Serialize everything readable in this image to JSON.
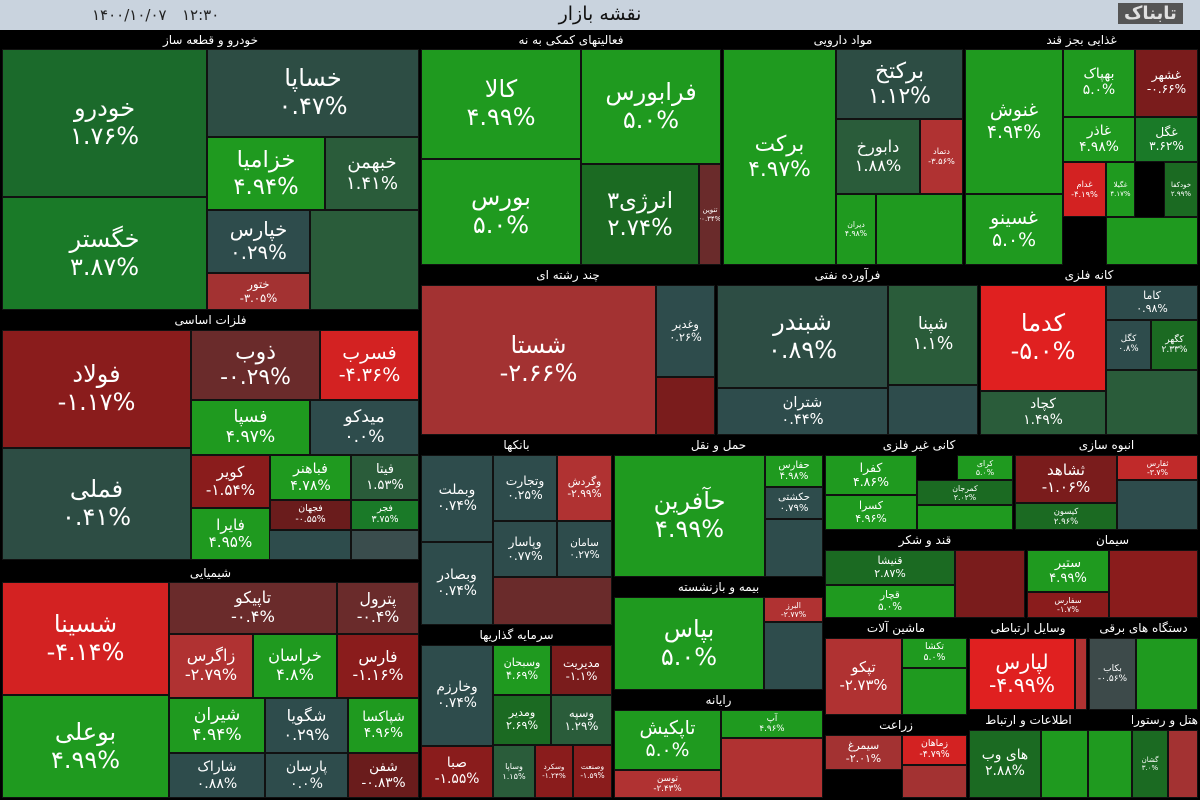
{
  "header": {
    "title": "نقشه بازار",
    "date": "۱۴۰۰/۱۰/۰۷",
    "time": "۱۲:۳۰",
    "logo": "تابناک"
  },
  "sectors": [
    {
      "name": "خودرو و قطعه ساز",
      "tiles": [
        {
          "name": "خودرو",
          "change": "۱.۷۶%",
          "color": "#1b6a2b"
        },
        {
          "name": "خگستر",
          "change": "۳.۸۷%",
          "color": "#1a7a28"
        },
        {
          "name": "خساپا",
          "change": "۰.۴۷%",
          "color": "#2d4d44"
        },
        {
          "name": "خزامیا",
          "change": "۴.۹۴%",
          "color": "#1f9a1f"
        },
        {
          "name": "خبهمن",
          "change": "۱.۴۱%",
          "color": "#2a5c3a"
        },
        {
          "name": "خپارس",
          "change": "۰.۲۹%",
          "color": "#2e4c4c"
        },
        {
          "name": "ختور",
          "change": "-۳.۰۵%",
          "color": "#a33232"
        }
      ]
    },
    {
      "name": "فلزات اساسی",
      "tiles": [
        {
          "name": "فولاد",
          "change": "-۱.۱۷%",
          "color": "#8a1c1c"
        },
        {
          "name": "فملی",
          "change": "۰.۴۱%",
          "color": "#2d4d44"
        },
        {
          "name": "ذوب",
          "change": "-۰.۲۹%",
          "color": "#6a2b2b"
        },
        {
          "name": "فسرب",
          "change": "-۴.۳۶%",
          "color": "#d32222"
        },
        {
          "name": "فسپا",
          "change": "۴.۹۷%",
          "color": "#1f9a1f"
        },
        {
          "name": "میدکو",
          "change": "۰.۰%",
          "color": "#2e4c4c"
        },
        {
          "name": "کویر",
          "change": "-۱.۵۴%",
          "color": "#8a1c1c"
        },
        {
          "name": "فباهنر",
          "change": "۴.۷۸%",
          "color": "#1f9a1f"
        },
        {
          "name": "فیتا",
          "change": "۱.۵۳%",
          "color": "#2a5c3a"
        },
        {
          "name": "فجهان",
          "change": "-۰.۵۵%",
          "color": "#6a1c1c"
        },
        {
          "name": "فجر",
          "change": "۳.۷۵%",
          "color": "#1a7a28"
        },
        {
          "name": "فایرا",
          "change": "۴.۹۵%",
          "color": "#1f9a1f"
        }
      ]
    },
    {
      "name": "شیمیایی",
      "tiles": [
        {
          "name": "شسینا",
          "change": "-۴.۱۴%",
          "color": "#d32222"
        },
        {
          "name": "بوعلی",
          "change": "۴.۹۹%",
          "color": "#1f9a1f"
        },
        {
          "name": "تاپیکو",
          "change": "-۰.۴%",
          "color": "#6a2b2b"
        },
        {
          "name": "پترول",
          "change": "-۰.۴%",
          "color": "#6a2b2b"
        },
        {
          "name": "زاگرس",
          "change": "-۲.۷۹%",
          "color": "#b03232"
        },
        {
          "name": "خراسان",
          "change": "۴.۸%",
          "color": "#1f9a1f"
        },
        {
          "name": "فارس",
          "change": "-۱.۱۶%",
          "color": "#8a1c1c"
        },
        {
          "name": "شیران",
          "change": "۴.۹۴%",
          "color": "#1f9a1f"
        },
        {
          "name": "شگویا",
          "change": "۰.۲۹%",
          "color": "#2e4c4c"
        },
        {
          "name": "شپاکسا",
          "change": "۴.۹۶%",
          "color": "#1f9a1f"
        },
        {
          "name": "شاراک",
          "change": "۰.۸۸%",
          "color": "#2e4c4c"
        },
        {
          "name": "پارسان",
          "change": "۰.۰%",
          "color": "#2e4c4c"
        },
        {
          "name": "شفن",
          "change": "-۰.۸۳%",
          "color": "#6a1c1c"
        }
      ]
    },
    {
      "name": "فعالیتهای کمکی به نه",
      "tiles": [
        {
          "name": "کالا",
          "change": "۴.۹۹%",
          "color": "#1f9a1f"
        },
        {
          "name": "فرابورس",
          "change": "۵.۰%",
          "color": "#1f9a1f"
        },
        {
          "name": "بورس",
          "change": "۵.۰%",
          "color": "#1f9a1f"
        },
        {
          "name": "انرژی۳",
          "change": "۲.۷۴%",
          "color": "#1b6a22"
        },
        {
          "name": "تنوین",
          "change": "-۰.۳۴%",
          "color": "#6a2b2b"
        }
      ]
    },
    {
      "name": "مواد دارویی",
      "tiles": [
        {
          "name": "برکت",
          "change": "۴.۹۷%",
          "color": "#1f9a1f"
        },
        {
          "name": "برکتخ",
          "change": "۱.۱۲%",
          "color": "#2d4d44"
        },
        {
          "name": "دابورخ",
          "change": "۱.۸۸%",
          "color": "#2a5c3a"
        },
        {
          "name": "دتماد",
          "change": "-۳.۵۶%",
          "color": "#b03232"
        },
        {
          "name": "دیران",
          "change": "۴.۹۸%",
          "color": "#1f9a1f"
        }
      ]
    },
    {
      "name": "غذایی بجز قند",
      "tiles": [
        {
          "name": "غنوش",
          "change": "۴.۹۴%",
          "color": "#1f9a1f"
        },
        {
          "name": "غسینو",
          "change": "۵.۰%",
          "color": "#1f9a1f"
        },
        {
          "name": "بهپاک",
          "change": "۵.۰%",
          "color": "#1f9a1f"
        },
        {
          "name": "غشهر",
          "change": "-۰.۶۶%",
          "color": "#7a1c1c"
        },
        {
          "name": "غاذر",
          "change": "۴.۹۸%",
          "color": "#1f9a1f"
        },
        {
          "name": "غگل",
          "change": "۳.۶۲%",
          "color": "#1a7a28"
        },
        {
          "name": "غدام",
          "change": "-۴.۱۹%",
          "color": "#d32222"
        },
        {
          "name": "غگیلا",
          "change": "۴.۱۷%",
          "color": "#1f9a1f"
        },
        {
          "name": "خودکفا",
          "change": "۲.۹۹%",
          "color": "#1b6a22"
        }
      ]
    },
    {
      "name": "چند رشته ای",
      "tiles": [
        {
          "name": "شستا",
          "change": "-۲.۶۶%",
          "color": "#a33232"
        },
        {
          "name": "وغدیر",
          "change": "۰.۲۶%",
          "color": "#2e4c4c"
        }
      ]
    },
    {
      "name": "فرآورده نفتی",
      "tiles": [
        {
          "name": "شبندر",
          "change": "۰.۸۹%",
          "color": "#2d4d44"
        },
        {
          "name": "شپنا",
          "change": "۱.۱%",
          "color": "#2a5c3a"
        },
        {
          "name": "شتران",
          "change": "۰.۴۴%",
          "color": "#2e4c4c"
        }
      ]
    },
    {
      "name": "کانه فلزی",
      "tiles": [
        {
          "name": "کدما",
          "change": "-۵.۰%",
          "color": "#e02020"
        },
        {
          "name": "کچاد",
          "change": "۱.۴۹%",
          "color": "#2a5c3a"
        },
        {
          "name": "کاما",
          "change": "۰.۹۸%",
          "color": "#2e4c4c"
        },
        {
          "name": "کگل",
          "change": "۰.۸%",
          "color": "#2e4c4c"
        },
        {
          "name": "کگهر",
          "change": "۲.۳۳%",
          "color": "#1b6a22"
        }
      ]
    },
    {
      "name": "بانکها",
      "tiles": [
        {
          "name": "وبملت",
          "change": "۰.۷۴%",
          "color": "#2e4c4c"
        },
        {
          "name": "وبصادر",
          "change": "۰.۷۴%",
          "color": "#2e4c4c"
        },
        {
          "name": "وتجارت",
          "change": "۰.۲۵%",
          "color": "#2e4c4c"
        },
        {
          "name": "وگردش",
          "change": "-۲.۹۹%",
          "color": "#b03232"
        },
        {
          "name": "وپاسار",
          "change": "۰.۷۷%",
          "color": "#2e4c4c"
        },
        {
          "name": "سامان",
          "change": "۰.۲۷%",
          "color": "#2e4c4c"
        }
      ]
    },
    {
      "name": "حمل و نقل",
      "tiles": [
        {
          "name": "حآفرین",
          "change": "۴.۹۹%",
          "color": "#1f9a1f"
        },
        {
          "name": "حفارس",
          "change": "۴.۹۸%",
          "color": "#1f9a1f"
        },
        {
          "name": "حکشتی",
          "change": "۰.۷۹%",
          "color": "#2e4c4c"
        }
      ]
    },
    {
      "name": "بیمه و بازنشسته",
      "tiles": [
        {
          "name": "بپاس",
          "change": "۵.۰%",
          "color": "#1f9a1f"
        },
        {
          "name": "البرز",
          "change": "-۲.۷۷%",
          "color": "#b03232"
        }
      ]
    },
    {
      "name": "رایانه",
      "tiles": [
        {
          "name": "تاپکیش",
          "change": "۵.۰%",
          "color": "#1f9a1f"
        },
        {
          "name": "توسن",
          "change": "-۲.۴۳%",
          "color": "#b03232"
        },
        {
          "name": "آپ",
          "change": "۴.۹۶%",
          "color": "#1f9a1f"
        }
      ]
    },
    {
      "name": "سرمایه گذاریها",
      "tiles": [
        {
          "name": "وخارزم",
          "change": "۰.۷۴%",
          "color": "#2e4c4c"
        },
        {
          "name": "صبا",
          "change": "-۱.۵۵%",
          "color": "#8a1c1c"
        },
        {
          "name": "وسبحان",
          "change": "۴.۶۹%",
          "color": "#1f9a1f"
        },
        {
          "name": "مدیریت",
          "change": "-۱.۱%",
          "color": "#7a1c1c"
        },
        {
          "name": "ومدیر",
          "change": "۲.۶۹%",
          "color": "#1b6a22"
        },
        {
          "name": "وسپه",
          "change": "۱.۲۹%",
          "color": "#2a5c3a"
        },
        {
          "name": "وساپا",
          "change": "۱.۱۵%",
          "color": "#2a5c3a"
        },
        {
          "name": "وسکرد",
          "change": "-۱.۲۴%",
          "color": "#8a1c1c"
        },
        {
          "name": "وصنعت",
          "change": "-۱.۵۹%",
          "color": "#8a1c1c"
        }
      ]
    },
    {
      "name": "کانی غیر فلزی",
      "tiles": [
        {
          "name": "کفرا",
          "change": "۴.۸۶%",
          "color": "#1f9a1f"
        },
        {
          "name": "کسرا",
          "change": "۴.۹۶%",
          "color": "#1f9a1f"
        },
        {
          "name": "کرای",
          "change": "۵.۰%",
          "color": "#1f9a1f"
        },
        {
          "name": "کمرجان",
          "change": "۲.۰۲%",
          "color": "#1b6a22"
        }
      ]
    },
    {
      "name": "انبوه سازی",
      "tiles": [
        {
          "name": "ثشاهد",
          "change": "-۱.۰۶%",
          "color": "#7a1c1c"
        },
        {
          "name": "کیسون",
          "change": "۲.۹۶%",
          "color": "#1b6a22"
        },
        {
          "name": "ثفارس",
          "change": "-۳.۷%",
          "color": "#c02a2a"
        }
      ]
    },
    {
      "name": "قند و شکر",
      "tiles": [
        {
          "name": "قنیشا",
          "change": "۲.۸۷%",
          "color": "#1b6a22"
        },
        {
          "name": "قچار",
          "change": "۵.۰%",
          "color": "#1f9a1f"
        }
      ]
    },
    {
      "name": "سیمان",
      "tiles": [
        {
          "name": "ستیر",
          "change": "۴.۹۹%",
          "color": "#1f9a1f"
        },
        {
          "name": "سفارس",
          "change": "-۱.۷%",
          "color": "#8a1c1c"
        }
      ]
    },
    {
      "name": "ماشین آلات",
      "tiles": [
        {
          "name": "تپکو",
          "change": "-۲.۷۳%",
          "color": "#b03232"
        },
        {
          "name": "تکشا",
          "change": "۵.۰%",
          "color": "#1f9a1f"
        }
      ]
    },
    {
      "name": "زراعت",
      "tiles": [
        {
          "name": "سیمرغ",
          "change": "-۲.۰۱%",
          "color": "#a33232"
        },
        {
          "name": "زماهان",
          "change": "-۴.۷۹%",
          "color": "#d32222"
        }
      ]
    },
    {
      "name": "وسایل ارتباطی",
      "tiles": [
        {
          "name": "لپارس",
          "change": "-۴.۹۹%",
          "color": "#e02020"
        }
      ]
    },
    {
      "name": "دستگاه های برقی",
      "tiles": [
        {
          "name": "بکاب",
          "change": "-۰.۵۶%",
          "color": "#3d4a4a"
        }
      ]
    },
    {
      "name": "اطلاعات و ارتباط",
      "tiles": [
        {
          "name": "های وب",
          "change": "۲.۸۸%",
          "color": "#1b6a22"
        }
      ]
    },
    {
      "name": "هتل و رستوران",
      "tiles": [
        {
          "name": "گشان",
          "change": "۳.۰%",
          "color": "#1b6a22"
        }
      ]
    }
  ]
}
